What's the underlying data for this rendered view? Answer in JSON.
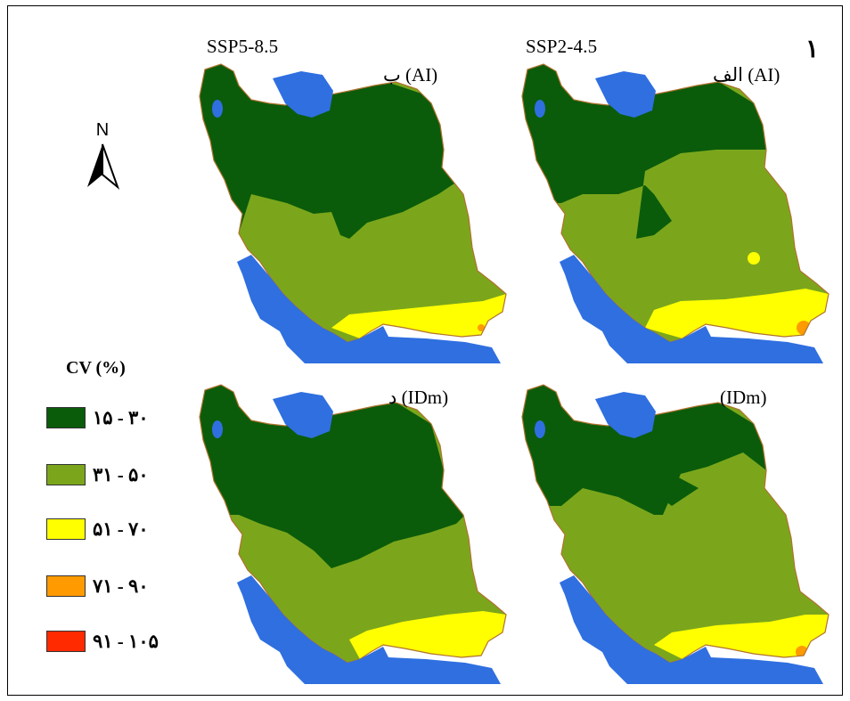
{
  "figure": {
    "panel_number": "۱",
    "scenario_left": "SSP5-8.5",
    "scenario_right": "SSP2-4.5"
  },
  "maps": [
    {
      "id": "top-left",
      "title": "ب (AI)"
    },
    {
      "id": "top-right",
      "title": "الف (AI)"
    },
    {
      "id": "bottom-left",
      "title": "د (IDm)"
    },
    {
      "id": "bottom-right",
      "title": "(IDm)"
    }
  ],
  "north_arrow": {
    "label": "N"
  },
  "legend": {
    "title": "CV (%)",
    "items": [
      {
        "label": "۱۵ - ۳۰",
        "color": "#0a5c0a"
      },
      {
        "label": "۳۱ - ۵۰",
        "color": "#7ba61c"
      },
      {
        "label": "۵۱ - ۷۰",
        "color": "#ffff00"
      },
      {
        "label": "۷۱ - ۹۰",
        "color": "#ff9a00"
      },
      {
        "label": "۹۱ - ۱۰۵",
        "color": "#ff2a00"
      }
    ]
  },
  "colors": {
    "water": "#2f6fe0",
    "outline": "#b0722e"
  }
}
